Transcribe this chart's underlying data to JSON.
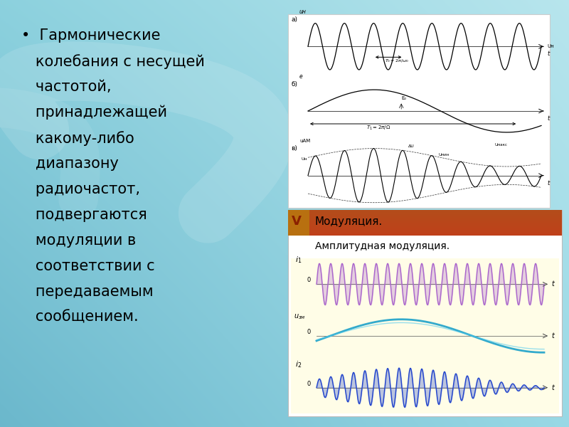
{
  "bg_color_tl": [
    0.55,
    0.82,
    0.87
  ],
  "bg_color_tr": [
    0.72,
    0.9,
    0.93
  ],
  "bg_color_bl": [
    0.42,
    0.72,
    0.8
  ],
  "bg_color_br": [
    0.6,
    0.85,
    0.9
  ],
  "text_lines": [
    "•  Гармонические",
    "   колебания с несущей",
    "   частотой,",
    "   принадлежащей",
    "   какому-либо",
    "   диапазону",
    "   радиочастот,",
    "   подвергаются",
    "   модуляции в",
    "   соответствии с",
    "   передаваемым",
    "   сообщением."
  ],
  "mod_title": "Модуляция.",
  "mod_subtitle": "Амплитудная модуляция.",
  "header_color": "#c04020",
  "logo_color": "#b06010",
  "panel_bg": "#fffde7",
  "purple_wave": "#aa66cc",
  "cyan_wave": "#33aacc",
  "blue_wave": "#2244cc"
}
